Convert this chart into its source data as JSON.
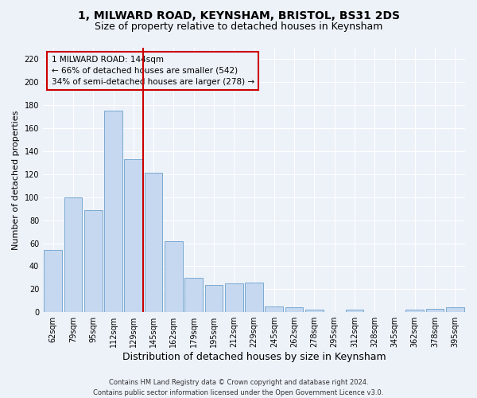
{
  "title": "1, MILWARD ROAD, KEYNSHAM, BRISTOL, BS31 2DS",
  "subtitle": "Size of property relative to detached houses in Keynsham",
  "xlabel": "Distribution of detached houses by size in Keynsham",
  "ylabel": "Number of detached properties",
  "categories": [
    "62sqm",
    "79sqm",
    "95sqm",
    "112sqm",
    "129sqm",
    "145sqm",
    "162sqm",
    "179sqm",
    "195sqm",
    "212sqm",
    "229sqm",
    "245sqm",
    "262sqm",
    "278sqm",
    "295sqm",
    "312sqm",
    "328sqm",
    "345sqm",
    "362sqm",
    "378sqm",
    "395sqm"
  ],
  "values": [
    54,
    100,
    89,
    175,
    133,
    121,
    62,
    30,
    24,
    25,
    26,
    5,
    4,
    2,
    0,
    2,
    0,
    0,
    2,
    3,
    4
  ],
  "bar_color": "#c5d8f0",
  "bar_edge_color": "#7aaad0",
  "reference_line_index": 5,
  "annotation_title": "1 MILWARD ROAD: 144sqm",
  "annotation_line1": "← 66% of detached houses are smaller (542)",
  "annotation_line2": "34% of semi-detached houses are larger (278) →",
  "annotation_box_color": "#cc0000",
  "ylim": [
    0,
    230
  ],
  "yticks": [
    0,
    20,
    40,
    60,
    80,
    100,
    120,
    140,
    160,
    180,
    200,
    220
  ],
  "footer1": "Contains HM Land Registry data © Crown copyright and database right 2024.",
  "footer2": "Contains public sector information licensed under the Open Government Licence v3.0.",
  "background_color": "#edf2f9",
  "grid_color": "#ffffff",
  "title_fontsize": 10,
  "subtitle_fontsize": 9,
  "axis_label_fontsize": 8,
  "tick_fontsize": 7,
  "footer_fontsize": 6
}
